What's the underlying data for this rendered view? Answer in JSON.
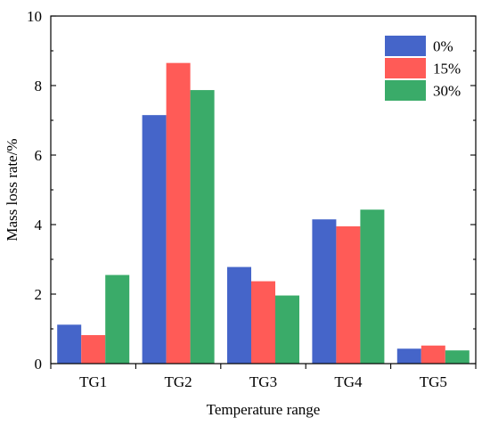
{
  "chart_data": {
    "type": "bar",
    "categories": [
      "TG1",
      "TG2",
      "TG3",
      "TG4",
      "TG5"
    ],
    "series": [
      {
        "name": "0%",
        "values": [
          1.12,
          7.15,
          2.78,
          4.15,
          0.43
        ],
        "color": "#4565c9"
      },
      {
        "name": "15%",
        "values": [
          0.82,
          8.65,
          2.37,
          3.95,
          0.52
        ],
        "color": "#ff5b57"
      },
      {
        "name": "30%",
        "values": [
          2.55,
          7.87,
          1.96,
          4.43,
          0.38
        ],
        "color": "#3aab69"
      }
    ],
    "title": "",
    "xlabel": "Temperature range",
    "ylabel": "Mass loss rate/%",
    "ylim": [
      0,
      10
    ],
    "yticks": [
      0,
      2,
      4,
      6,
      8,
      10
    ],
    "legend": {
      "position": "top-right"
    },
    "grid": false
  }
}
